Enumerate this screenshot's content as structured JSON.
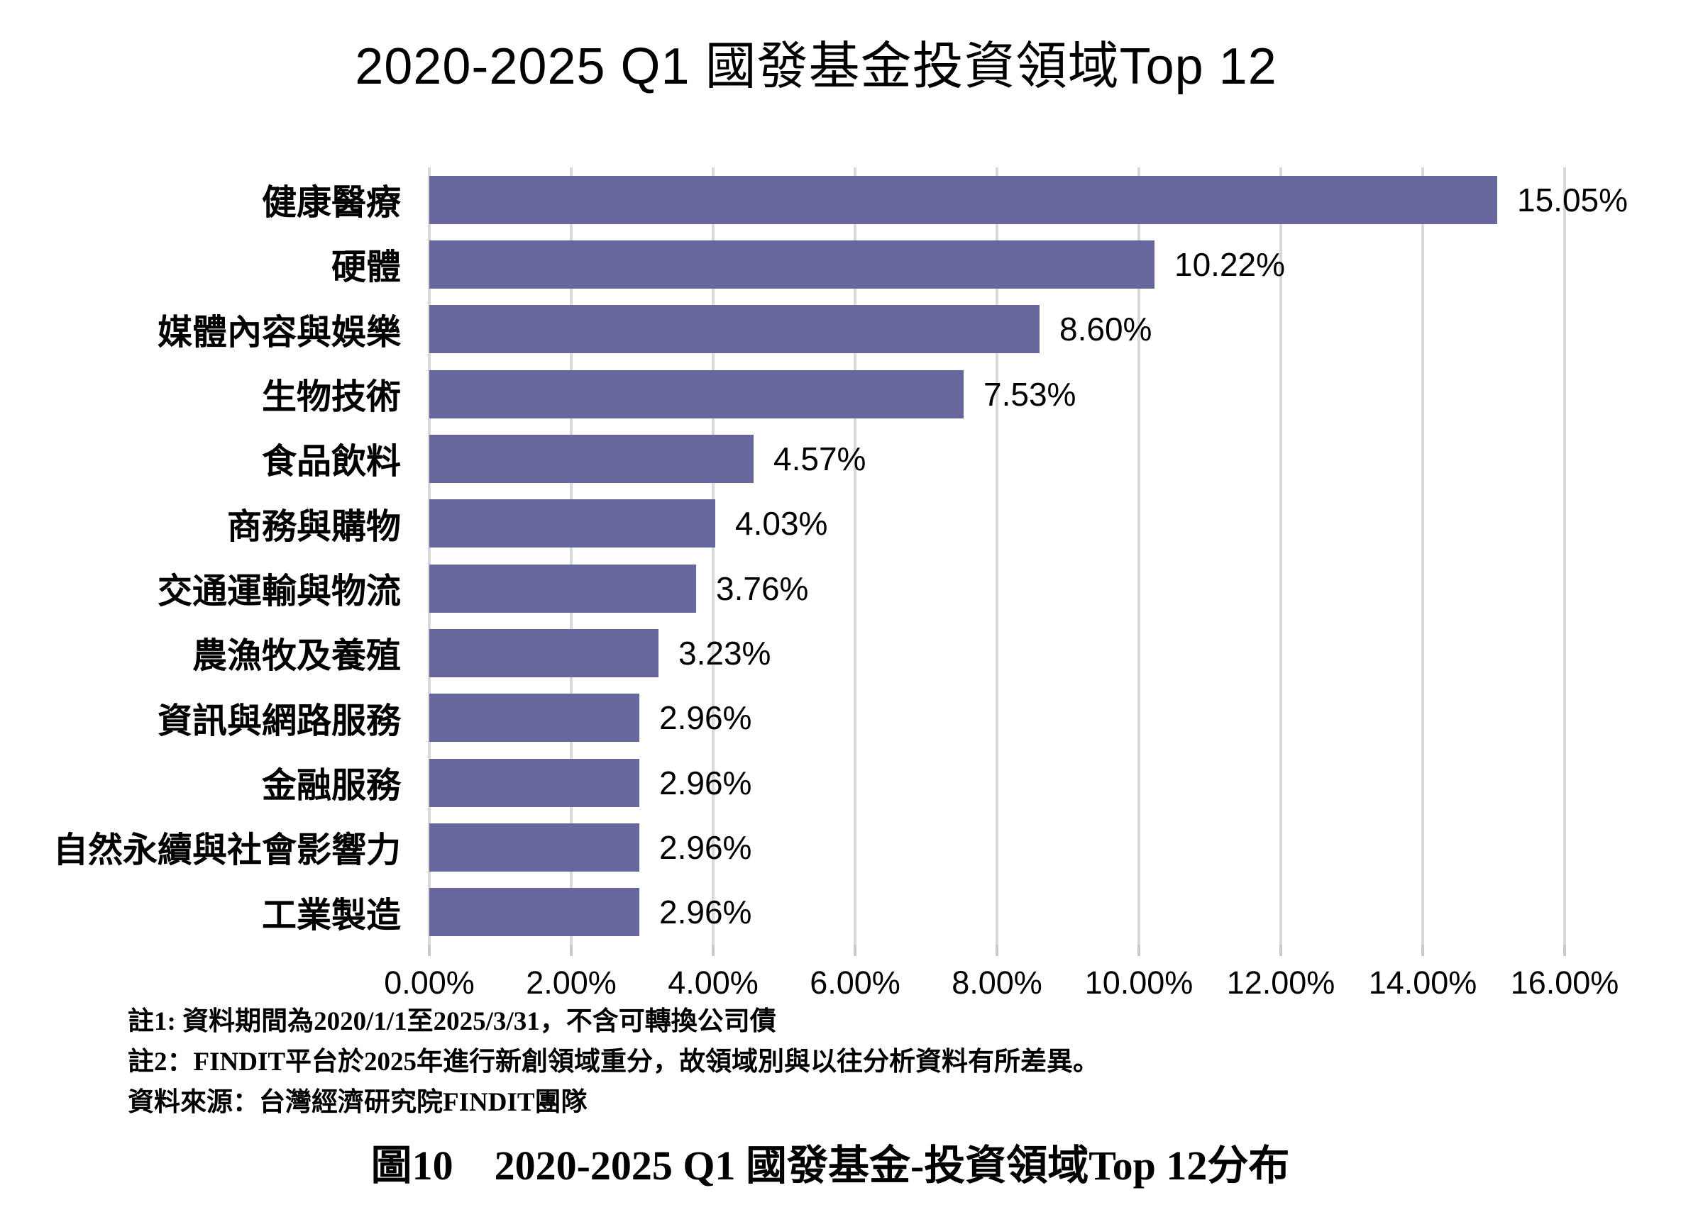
{
  "title": "2020-2025 Q1 國發基金投資領域Top 12",
  "chart_data": {
    "type": "bar",
    "orientation": "horizontal",
    "title": "2020-2025 Q1 國發基金投資領域Top 12",
    "categories": [
      "健康醫療",
      "硬體",
      "媒體內容與娛樂",
      "生物技術",
      "食品飲料",
      "商務與購物",
      "交通運輸與物流",
      "農漁牧及養殖",
      "資訊與網路服務",
      "金融服務",
      "自然永續與社會影響力",
      "工業製造"
    ],
    "values": [
      15.05,
      10.22,
      8.6,
      7.53,
      4.57,
      4.03,
      3.76,
      3.23,
      2.96,
      2.96,
      2.96,
      2.96
    ],
    "value_labels": [
      "15.05%",
      "10.22%",
      "8.60%",
      "7.53%",
      "4.57%",
      "4.03%",
      "3.76%",
      "3.23%",
      "2.96%",
      "2.96%",
      "2.96%",
      "2.96%"
    ],
    "xlabel": "",
    "ylabel": "",
    "xlim": [
      0,
      16
    ],
    "x_tick_labels": [
      "0.00%",
      "2.00%",
      "4.00%",
      "6.00%",
      "8.00%",
      "10.00%",
      "12.00%",
      "14.00%",
      "16.00%"
    ],
    "grid": true,
    "legend": "none",
    "bar_color": "#66679D",
    "gridline_color": "#d9d9d9"
  },
  "notes": {
    "note1": "註1: 資料期間為2020/1/1至2025/3/31，不含可轉換公司債",
    "note2": "註2：FINDIT平台於2025年進行新創領域重分，故領域別與以往分析資料有所差異。",
    "source": "資料來源：台灣經濟研究院FINDIT團隊"
  },
  "caption": "圖10　2020-2025 Q1  國發基金-投資領域Top 12分布"
}
